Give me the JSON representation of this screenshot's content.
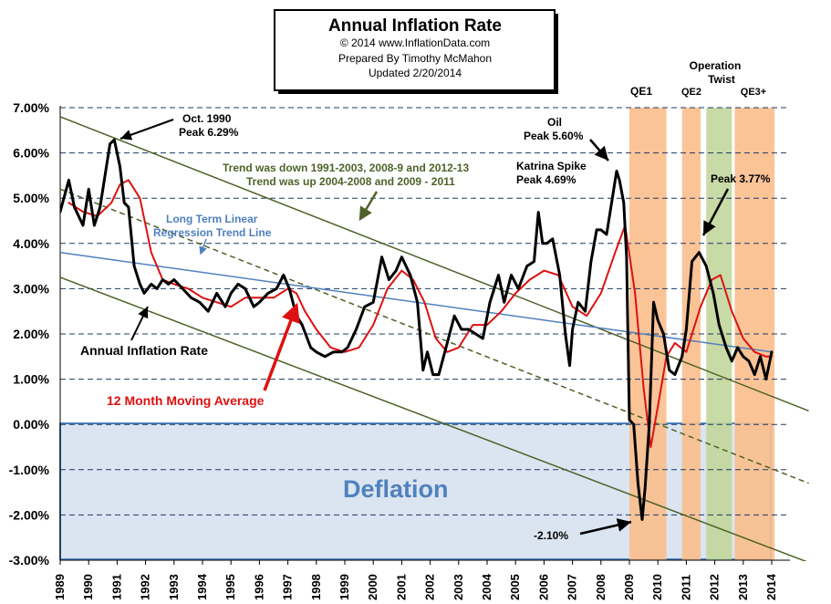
{
  "title_box": {
    "title": "Annual  Inflation Rate",
    "copyright": "© 2014  www.InflationData.com",
    "prepared": "Prepared  By Timothy McMahon",
    "updated": "Updated  2/20/2014"
  },
  "annotations": {
    "oct1990": "Oct. 1990",
    "oct1990_peak": "Peak 6.29%",
    "trend_line1": "Trend was down 1991-2003,  2008-9  and  2012-13",
    "trend_line2": "Trend was up 2004-2008  and 2009  - 2011",
    "regression1": "Long Term Linear",
    "regression2": "Regression  Trend Line",
    "oil": "Oil",
    "oil_peak": "Peak 5.60%",
    "katrina": "Katrina Spike",
    "katrina_peak": "Peak 4.69%",
    "peak377": "Peak 3.77%",
    "annual_label": "Annual Inflation Rate",
    "moving_avg_label": "12 Month Moving Average",
    "deflation": "Deflation",
    "trough": "-2.10%",
    "qe1": "QE1",
    "qe2": "QE2",
    "op_twist1": "Operation",
    "op_twist2": "Twist",
    "qe3": "QE3+"
  },
  "colors": {
    "annual": "#000000",
    "moving_avg": "#dd1111",
    "regression": "#4f81bd",
    "trend": "#4f6228",
    "qe_band": "#f9be8c",
    "twist_band": "#c2d69b",
    "deflation_fill": "#dbe5f1",
    "deflation_border": "#4f81bd",
    "grid": "#1f3864",
    "arrow_red": "#dd1111"
  },
  "chart_data": {
    "type": "line",
    "xlim": [
      1989,
      2015
    ],
    "ylim": [
      -3,
      7
    ],
    "y_ticks": [
      "7.00%",
      "6.00%",
      "5.00%",
      "4.00%",
      "3.00%",
      "2.00%",
      "1.00%",
      "0.00%",
      "-1.00%",
      "-2.00%",
      "-3.00%"
    ],
    "y_tick_values": [
      7,
      6,
      5,
      4,
      3,
      2,
      1,
      0,
      -1,
      -2,
      -3
    ],
    "x_ticks": [
      "1989",
      "1990",
      "1991",
      "1992",
      "1993",
      "1994",
      "1995",
      "1996",
      "1997",
      "1998",
      "1999",
      "2000",
      "2001",
      "2002",
      "2003",
      "2004",
      "2005",
      "2006",
      "2007",
      "2008",
      "2009",
      "2010",
      "2011",
      "2012",
      "2013",
      "2014"
    ],
    "grid": "horizontal dashed",
    "series": [
      {
        "name": "Annual Inflation Rate",
        "x": [
          1989.0,
          1989.3,
          1989.5,
          1989.8,
          1990.0,
          1990.2,
          1990.4,
          1990.6,
          1990.75,
          1990.9,
          1991.1,
          1991.25,
          1991.4,
          1991.6,
          1991.8,
          1991.95,
          1992.2,
          1992.4,
          1992.6,
          1992.8,
          1993.0,
          1993.3,
          1993.6,
          1993.9,
          1994.2,
          1994.5,
          1994.8,
          1995.0,
          1995.25,
          1995.5,
          1995.8,
          1996.0,
          1996.3,
          1996.6,
          1996.85,
          1997.05,
          1997.3,
          1997.5,
          1997.8,
          1998.0,
          1998.3,
          1998.6,
          1998.9,
          1999.1,
          1999.4,
          1999.7,
          2000.0,
          2000.3,
          2000.55,
          2000.8,
          2001.0,
          2001.3,
          2001.55,
          2001.75,
          2001.9,
          2002.1,
          2002.3,
          2002.6,
          2002.85,
          2003.1,
          2003.35,
          2003.6,
          2003.85,
          2004.1,
          2004.4,
          2004.6,
          2004.85,
          2005.1,
          2005.4,
          2005.65,
          2005.8,
          2005.95,
          2006.1,
          2006.3,
          2006.55,
          2006.75,
          2006.9,
          2007.0,
          2007.2,
          2007.45,
          2007.65,
          2007.85,
          2008.0,
          2008.2,
          2008.4,
          2008.55,
          2008.65,
          2008.8,
          2008.9,
          2009.0,
          2009.15,
          2009.3,
          2009.45,
          2009.55,
          2009.7,
          2009.85,
          2010.0,
          2010.2,
          2010.4,
          2010.6,
          2010.85,
          2011.0,
          2011.2,
          2011.45,
          2011.7,
          2011.95,
          2012.15,
          2012.4,
          2012.6,
          2012.8,
          2013.0,
          2013.2,
          2013.4,
          2013.6,
          2013.8,
          2014.0
        ],
        "values": [
          4.7,
          5.4,
          4.8,
          4.4,
          5.2,
          4.4,
          4.8,
          5.6,
          6.2,
          6.29,
          5.7,
          4.9,
          4.8,
          3.5,
          3.1,
          2.9,
          3.1,
          3.0,
          3.2,
          3.1,
          3.2,
          3.0,
          2.8,
          2.7,
          2.5,
          2.9,
          2.6,
          2.9,
          3.1,
          3.0,
          2.6,
          2.7,
          2.9,
          3.0,
          3.3,
          3.0,
          2.4,
          2.2,
          1.7,
          1.6,
          1.5,
          1.6,
          1.6,
          1.7,
          2.1,
          2.6,
          2.7,
          3.7,
          3.2,
          3.4,
          3.7,
          3.3,
          2.7,
          1.2,
          1.6,
          1.1,
          1.1,
          1.8,
          2.4,
          2.1,
          2.1,
          2.0,
          1.9,
          2.7,
          3.3,
          2.7,
          3.3,
          3.0,
          3.5,
          3.6,
          4.69,
          4.0,
          4.0,
          4.1,
          3.3,
          2.0,
          1.3,
          2.1,
          2.7,
          2.5,
          3.6,
          4.3,
          4.3,
          4.2,
          5.0,
          5.6,
          5.4,
          4.9,
          3.7,
          0.1,
          0.0,
          -1.3,
          -2.1,
          -1.4,
          0.0,
          2.7,
          2.3,
          2.0,
          1.2,
          1.1,
          1.5,
          2.1,
          3.6,
          3.8,
          3.5,
          2.9,
          2.2,
          1.7,
          1.4,
          1.7,
          1.5,
          1.4,
          1.1,
          1.5,
          1.0,
          1.6
        ]
      },
      {
        "name": "12 Month Moving Average",
        "x": [
          1989.3,
          1989.8,
          1990.3,
          1990.8,
          1991.1,
          1991.4,
          1991.8,
          1992.2,
          1992.6,
          1993.0,
          1993.5,
          1994.0,
          1994.5,
          1995.0,
          1995.5,
          1996.0,
          1996.5,
          1997.0,
          1997.3,
          1997.6,
          1998.0,
          1998.5,
          1999.0,
          1999.5,
          2000.0,
          2000.5,
          2001.0,
          2001.4,
          2001.8,
          2002.2,
          2002.6,
          2003.0,
          2003.5,
          2004.0,
          2004.5,
          2005.0,
          2005.5,
          2006.0,
          2006.5,
          2007.0,
          2007.5,
          2008.0,
          2008.5,
          2008.85,
          2009.2,
          2009.5,
          2009.75,
          2010.0,
          2010.3,
          2010.6,
          2011.0,
          2011.5,
          2011.9,
          2012.2,
          2012.6,
          2013.0,
          2013.4,
          2013.8,
          2014.0
        ],
        "values": [
          4.9,
          4.7,
          4.6,
          4.9,
          5.3,
          5.4,
          5.0,
          3.8,
          3.2,
          3.1,
          3.0,
          2.8,
          2.7,
          2.6,
          2.8,
          2.8,
          2.8,
          3.0,
          2.9,
          2.5,
          2.1,
          1.7,
          1.6,
          1.7,
          2.2,
          3.0,
          3.4,
          3.2,
          2.7,
          1.9,
          1.6,
          1.7,
          2.2,
          2.2,
          2.5,
          2.9,
          3.2,
          3.4,
          3.3,
          2.6,
          2.4,
          2.9,
          3.8,
          4.4,
          2.9,
          0.8,
          -0.5,
          0.4,
          1.5,
          1.8,
          1.6,
          2.6,
          3.2,
          3.3,
          2.5,
          1.9,
          1.6,
          1.5,
          1.5
        ]
      },
      {
        "name": "Long Term Linear Regression Trend Line",
        "x": [
          1989,
          2014
        ],
        "values": [
          3.8,
          1.6
        ]
      }
    ],
    "trend_channels": [
      {
        "x": [
          1989,
          2015.3
        ],
        "values": [
          6.8,
          0.3
        ],
        "style": "solid"
      },
      {
        "x": [
          1989,
          2015.3
        ],
        "values": [
          3.25,
          -3.05
        ],
        "style": "solid"
      },
      {
        "x": [
          1989,
          2015.3
        ],
        "values": [
          5.2,
          -1.3
        ],
        "style": "dashed"
      }
    ],
    "bands": [
      {
        "label": "QE1",
        "x0": 2009.0,
        "x1": 2010.3
      },
      {
        "label": "QE2",
        "x0": 2010.85,
        "x1": 2011.5
      },
      {
        "label": "Operation Twist",
        "x0": 2011.7,
        "x1": 2012.6
      },
      {
        "label": "QE3+",
        "x0": 2012.7,
        "x1": 2014.1
      }
    ]
  }
}
